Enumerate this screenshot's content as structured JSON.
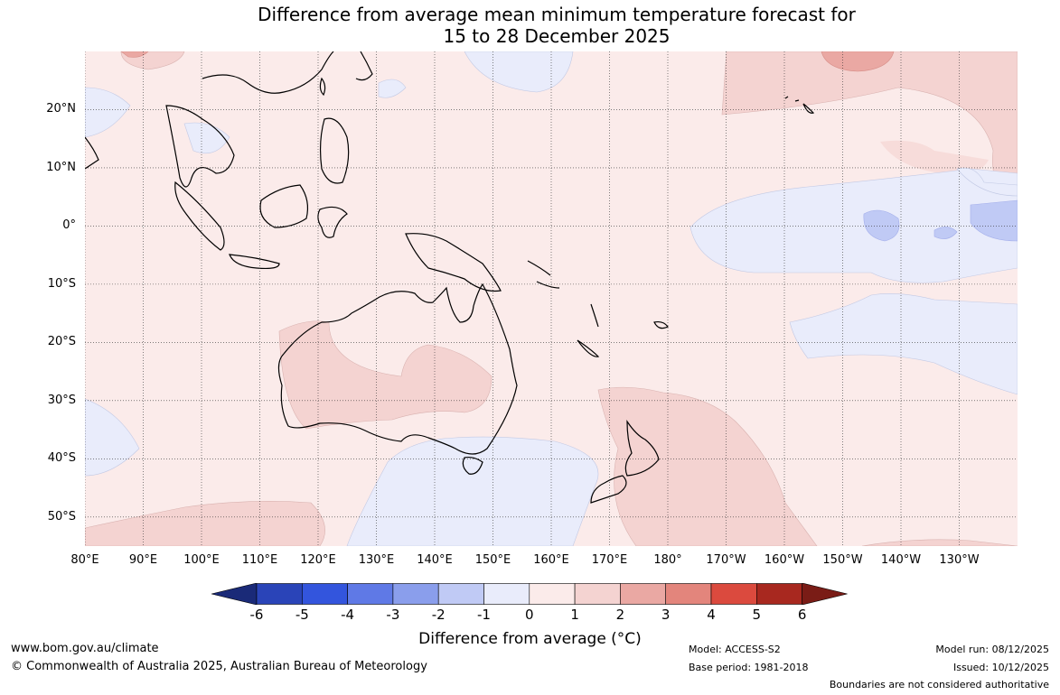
{
  "title": {
    "line1": "Difference from average mean minimum temperature forecast for",
    "line2": "15 to 28 December 2025"
  },
  "map": {
    "lon_extent": [
      80,
      240
    ],
    "lat_extent": [
      -55,
      30
    ],
    "lat_labels": [
      {
        "lat": 20,
        "text": "20°N"
      },
      {
        "lat": 10,
        "text": "10°N"
      },
      {
        "lat": 0,
        "text": "0°"
      },
      {
        "lat": -10,
        "text": "10°S"
      },
      {
        "lat": -20,
        "text": "20°S"
      },
      {
        "lat": -30,
        "text": "30°S"
      },
      {
        "lat": -40,
        "text": "40°S"
      },
      {
        "lat": -50,
        "text": "50°S"
      }
    ],
    "lon_labels": [
      {
        "lon": 80,
        "text": "80°E"
      },
      {
        "lon": 90,
        "text": "90°E"
      },
      {
        "lon": 100,
        "text": "100°E"
      },
      {
        "lon": 110,
        "text": "110°E"
      },
      {
        "lon": 120,
        "text": "120°E"
      },
      {
        "lon": 130,
        "text": "130°E"
      },
      {
        "lon": 140,
        "text": "140°E"
      },
      {
        "lon": 150,
        "text": "150°E"
      },
      {
        "lon": 160,
        "text": "160°E"
      },
      {
        "lon": 170,
        "text": "170°E"
      },
      {
        "lon": 180,
        "text": "180°"
      },
      {
        "lon": 190,
        "text": "170°W"
      },
      {
        "lon": 200,
        "text": "160°W"
      },
      {
        "lon": 210,
        "text": "150°W"
      },
      {
        "lon": 220,
        "text": "140°W"
      },
      {
        "lon": 230,
        "text": "130°W"
      }
    ]
  },
  "colorbar": {
    "label": "Difference from average (°C)",
    "ticks": [
      "-6",
      "-5",
      "-4",
      "-3",
      "-2",
      "-1",
      "0",
      "1",
      "2",
      "3",
      "4",
      "5",
      "6"
    ],
    "colors": [
      "#1a2a78",
      "#2a44b8",
      "#3355dd",
      "#5f79e6",
      "#8a9eec",
      "#c0caf5",
      "#e9ecfb",
      "#fbebea",
      "#f4d3d1",
      "#eaa8a3",
      "#e3857c",
      "#db4a3e",
      "#a8281f",
      "#7a1c16"
    ]
  },
  "footer": {
    "website": "www.bom.gov.au/climate",
    "copyright": "© Commonwealth of Australia 2025, Australian Bureau of Meteorology",
    "model": "Model: ACCESS-S2",
    "base_period": "Base period: 1981-2018",
    "model_run": "Model run: 08/12/2025",
    "issued": "Issued: 10/12/2025",
    "disclaimer": "Boundaries are not considered authoritative"
  }
}
